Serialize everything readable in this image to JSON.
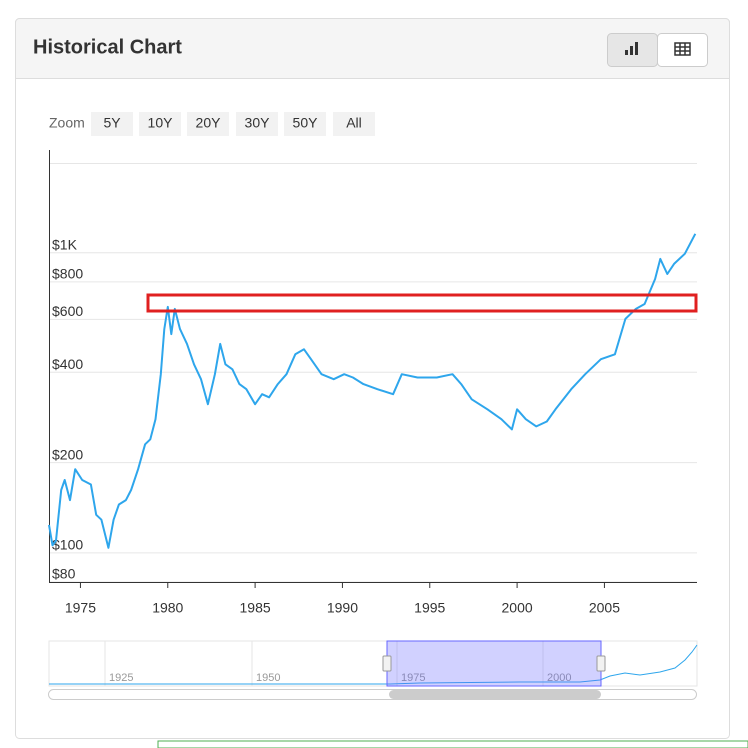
{
  "header": {
    "title": "Historical Chart"
  },
  "zoom": {
    "label": "Zoom",
    "buttons": [
      "5Y",
      "10Y",
      "20Y",
      "30Y",
      "50Y",
      "All"
    ]
  },
  "navigator": {
    "labels": [
      "1925",
      "1950",
      "1975",
      "2000"
    ]
  },
  "chart_data": {
    "type": "line",
    "color": "#2ea6ec",
    "log_scale": true,
    "grid": true,
    "xlim": [
      1973.2,
      2010.3
    ],
    "xticks": [
      1975,
      1980,
      1985,
      1990,
      1995,
      2000,
      2005
    ],
    "ylim": [
      80,
      2200
    ],
    "yticks": [
      {
        "value": 80,
        "label": "$80"
      },
      {
        "value": 100,
        "label": "$100"
      },
      {
        "value": 200,
        "label": "$200"
      },
      {
        "value": 400,
        "label": "$400"
      },
      {
        "value": 600,
        "label": "$600"
      },
      {
        "value": 800,
        "label": "$800"
      },
      {
        "value": 1000,
        "label": "$1K"
      }
    ],
    "x": [
      1973.2,
      1973.4,
      1973.6,
      1973.9,
      1974.1,
      1974.4,
      1974.7,
      1975.1,
      1975.6,
      1975.9,
      1976.2,
      1976.6,
      1976.9,
      1977.2,
      1977.6,
      1977.9,
      1978.3,
      1978.7,
      1979.0,
      1979.3,
      1979.6,
      1979.8,
      1980.0,
      1980.2,
      1980.4,
      1980.7,
      1981.1,
      1981.5,
      1981.9,
      1982.3,
      1982.7,
      1983.0,
      1983.3,
      1983.7,
      1984.1,
      1984.5,
      1985.0,
      1985.4,
      1985.8,
      1986.3,
      1986.8,
      1987.3,
      1987.8,
      1988.2,
      1988.8,
      1989.5,
      1990.1,
      1990.6,
      1991.2,
      1992.0,
      1992.9,
      1993.4,
      1994.3,
      1995.4,
      1996.3,
      1996.8,
      1997.4,
      1998.3,
      1999.1,
      1999.7,
      2000.0,
      2000.5,
      2001.1,
      2001.7,
      2002.2,
      2003.1,
      2003.9,
      2004.8,
      2005.6,
      2006.2,
      2006.8,
      2007.3,
      2007.9,
      2008.2,
      2008.6,
      2009.0,
      2009.6,
      2010.2
    ],
    "values": [
      124,
      106,
      110,
      162,
      175,
      150,
      190,
      175,
      169,
      134,
      129,
      104,
      129,
      145,
      150,
      162,
      190,
      230,
      239,
      279,
      394,
      557,
      660,
      536,
      650,
      557,
      497,
      425,
      379,
      313,
      394,
      497,
      425,
      409,
      365,
      351,
      313,
      338,
      330,
      365,
      394,
      459,
      477,
      442,
      394,
      379,
      394,
      384,
      365,
      351,
      338,
      394,
      384,
      384,
      394,
      365,
      325,
      301,
      279,
      258,
      301,
      279,
      264,
      274,
      301,
      351,
      394,
      442,
      459,
      602,
      650,
      675,
      818,
      954,
      850,
      920,
      992,
      1157
    ]
  }
}
